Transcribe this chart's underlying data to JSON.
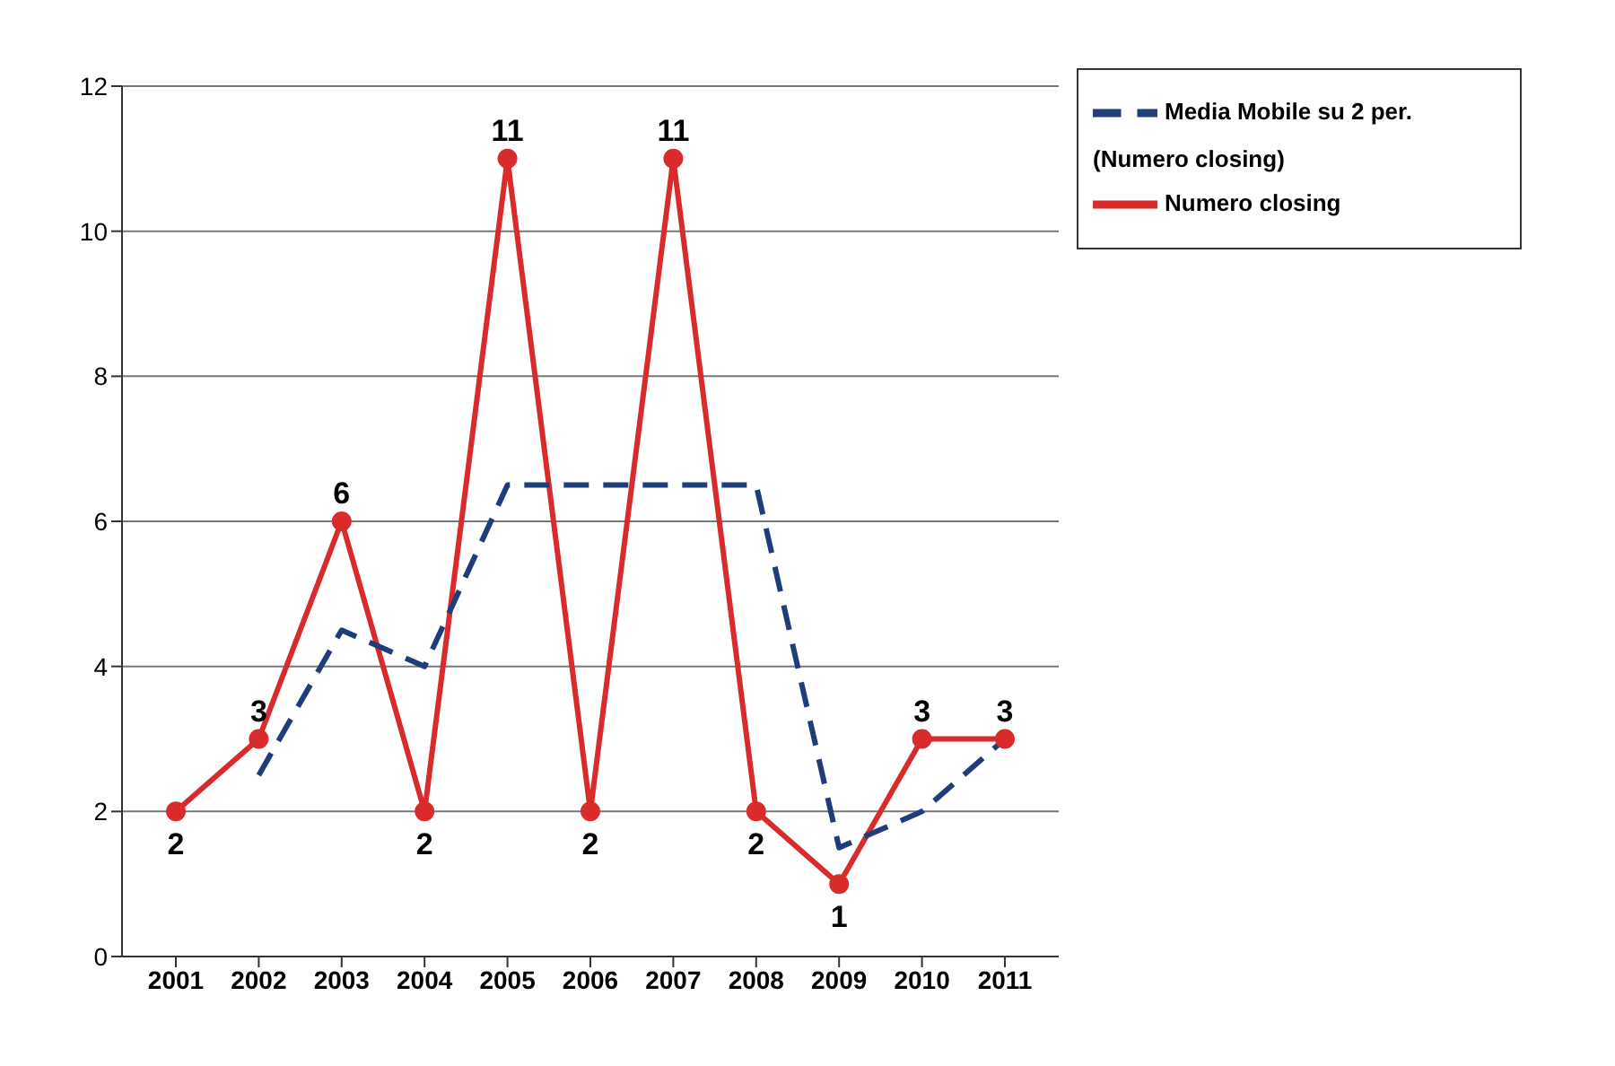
{
  "chart_data": {
    "type": "line",
    "categories": [
      "2001",
      "2002",
      "2003",
      "2004",
      "2005",
      "2006",
      "2007",
      "2008",
      "2009",
      "2010",
      "2011"
    ],
    "series": [
      {
        "name": "Numero closing",
        "color": "#d92b2b",
        "values": [
          2,
          3,
          6,
          2,
          11,
          2,
          11,
          2,
          1,
          3,
          3
        ],
        "marker": "circle",
        "line_style": "solid",
        "value_labels": [
          "2",
          "3",
          "6",
          "2",
          "11",
          "2",
          "11",
          "2",
          "1",
          "3",
          "3"
        ]
      },
      {
        "name": "Media Mobile su 2 per. (Numero closing)",
        "color": "#1f3d7a",
        "values": [
          null,
          2.5,
          4.5,
          4,
          6.5,
          6.5,
          6.5,
          6.5,
          1.5,
          2,
          3
        ],
        "marker": "none",
        "line_style": "dashed"
      }
    ],
    "ylim": [
      0,
      12
    ],
    "yticks": [
      0,
      2,
      4,
      6,
      8,
      10,
      12
    ],
    "grid": "y",
    "legend": "top right"
  }
}
